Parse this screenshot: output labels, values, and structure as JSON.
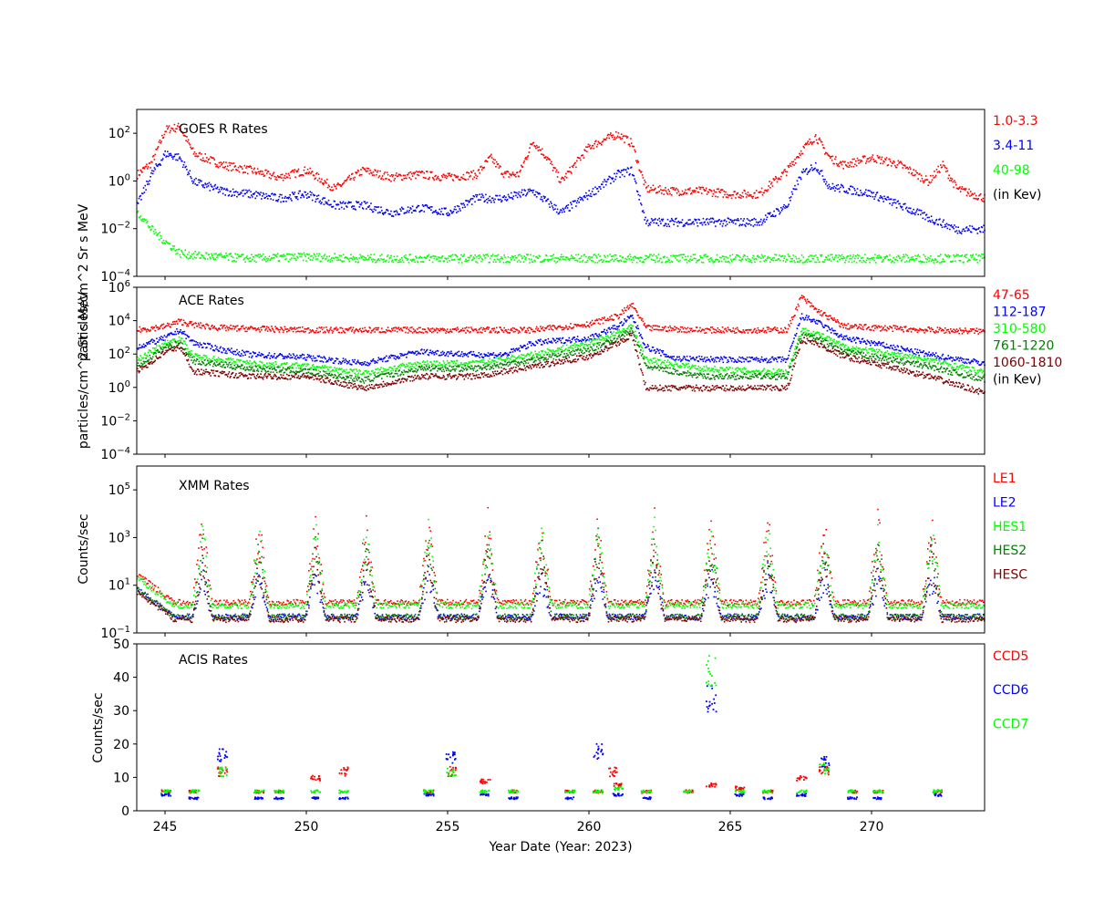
{
  "figure": {
    "xlabel": "Year Date (Year: 2023)",
    "xticks": [
      245,
      250,
      255,
      260,
      265,
      270
    ],
    "xlim": [
      244.0,
      274.0
    ]
  },
  "chart_data": [
    {
      "type": "scatter",
      "title": "GOES R Rates",
      "ylabel": "particles/cm^2 Sr s MeV",
      "yscale": "log",
      "ylim_exp": [
        -4,
        3
      ],
      "ytick_exps": [
        -4,
        -2,
        0,
        2
      ],
      "legend": [
        "1.0-3.3",
        "3.4-11",
        "40-98",
        "(in Kev)"
      ],
      "legend_colors": [
        "#ff0000",
        "#0000ff",
        "#00ff00",
        "#000000"
      ],
      "series": [
        {
          "name": "1.0-3.3",
          "color": "#ff0000",
          "x": [
            244.0,
            244.5,
            245.0,
            245.5,
            246.0,
            247.0,
            248.0,
            249.0,
            250.0,
            251.0,
            252.0,
            253.0,
            254.0,
            255.0,
            256.0,
            256.5,
            257.0,
            257.5,
            258.0,
            258.5,
            259.0,
            260.0,
            261.0,
            261.5,
            262.0,
            263.0,
            264.0,
            265.0,
            266.0,
            267.0,
            267.5,
            268.0,
            268.5,
            269.0,
            270.0,
            271.0,
            272.0,
            272.5,
            273.0,
            274.0
          ],
          "y": [
            2,
            6,
            150,
            200,
            15,
            5,
            3,
            1.5,
            3,
            0.5,
            3,
            1.5,
            2,
            1.5,
            2,
            10,
            2,
            2,
            50,
            10,
            1,
            30,
            100,
            40,
            0.5,
            0.4,
            0.4,
            0.3,
            0.3,
            3,
            20,
            80,
            10,
            5,
            10,
            5,
            1,
            5,
            0.5,
            0.2
          ]
        },
        {
          "name": "3.4-11",
          "color": "#0000ff",
          "x": [
            244.0,
            244.5,
            245.0,
            245.5,
            246.0,
            247.0,
            248.0,
            249.0,
            250.0,
            251.0,
            252.0,
            253.0,
            254.0,
            255.0,
            256.0,
            257.0,
            258.0,
            259.0,
            260.0,
            261.0,
            261.5,
            262.0,
            263.0,
            264.0,
            265.0,
            266.0,
            267.0,
            267.5,
            268.0,
            268.5,
            269.0,
            270.0,
            271.0,
            272.0,
            273.0,
            274.0
          ],
          "y": [
            0.1,
            2,
            15,
            10,
            1,
            0.4,
            0.3,
            0.2,
            0.3,
            0.1,
            0.1,
            0.05,
            0.08,
            0.05,
            0.2,
            0.2,
            0.4,
            0.05,
            0.3,
            2,
            3,
            0.02,
            0.02,
            0.02,
            0.02,
            0.02,
            0.1,
            2,
            5,
            0.6,
            0.5,
            0.3,
            0.1,
            0.03,
            0.01,
            0.01
          ]
        },
        {
          "name": "40-98",
          "color": "#00ff00",
          "x": [
            244.0,
            244.2,
            244.5,
            245.0,
            245.5,
            246.0,
            248.0,
            250.0,
            252.0,
            255.0,
            258.0,
            261.0,
            264.0,
            267.0,
            270.0,
            274.0
          ],
          "y": [
            0.05,
            0.03,
            0.01,
            0.003,
            0.001,
            0.0008,
            0.0006,
            0.0007,
            0.0006,
            0.0006,
            0.0006,
            0.0006,
            0.0006,
            0.0006,
            0.0006,
            0.0006
          ]
        }
      ]
    },
    {
      "type": "scatter",
      "title": "ACE Rates",
      "ylabel": "particles/cm^2 Sr s MeV",
      "yscale": "log",
      "ylim_exp": [
        -4,
        6
      ],
      "ytick_exps": [
        -4,
        -2,
        0,
        2,
        4,
        6
      ],
      "legend": [
        "47-65",
        "112-187",
        "310-580",
        "761-1220",
        "1060-1810",
        "(in Kev)"
      ],
      "legend_colors": [
        "#ff0000",
        "#0000ff",
        "#00ff00",
        "#008000",
        "#800000",
        "#000000"
      ],
      "series": [
        {
          "name": "47-65",
          "color": "#ff0000",
          "x": [
            244.0,
            245.0,
            245.5,
            246.0,
            247.0,
            250.0,
            255.0,
            258.0,
            260.0,
            261.0,
            261.5,
            262.0,
            264.0,
            266.0,
            267.0,
            267.5,
            268.0,
            269.0,
            272.0,
            274.0
          ],
          "y": [
            3000,
            5000,
            10000,
            6000,
            4000,
            3000,
            3000,
            3000,
            7000,
            20000,
            100000,
            4000,
            3000,
            3000,
            3000,
            300000,
            50000,
            5000,
            3000,
            2500
          ]
        },
        {
          "name": "112-187",
          "color": "#0000ff",
          "x": [
            244.0,
            245.0,
            245.5,
            246.0,
            247.0,
            248.0,
            250.0,
            252.0,
            254.0,
            256.0,
            257.0,
            258.0,
            260.0,
            261.0,
            261.5,
            262.0,
            263.0,
            265.0,
            266.0,
            267.0,
            267.5,
            268.0,
            269.0,
            270.0,
            272.0,
            274.0
          ],
          "y": [
            300,
            1000,
            3000,
            500,
            200,
            100,
            70,
            30,
            150,
            100,
            100,
            500,
            1000,
            5000,
            20000,
            300,
            60,
            50,
            50,
            50,
            20000,
            10000,
            1000,
            500,
            100,
            30
          ]
        },
        {
          "name": "310-580",
          "color": "#00ff00",
          "x": [
            244.0,
            245.0,
            245.5,
            246.0,
            248.0,
            250.0,
            252.0,
            254.0,
            256.0,
            258.0,
            260.0,
            261.0,
            261.5,
            262.0,
            264.0,
            266.0,
            267.0,
            267.5,
            268.0,
            269.0,
            272.0,
            274.0
          ],
          "y": [
            50,
            500,
            1000,
            80,
            30,
            20,
            8,
            30,
            30,
            100,
            500,
            2000,
            5000,
            50,
            15,
            10,
            10,
            3000,
            2000,
            300,
            50,
            8
          ]
        },
        {
          "name": "761-1220",
          "color": "#008000",
          "x": [
            244.0,
            245.0,
            245.5,
            246.0,
            248.0,
            250.0,
            252.0,
            254.0,
            256.0,
            258.0,
            260.0,
            261.0,
            261.5,
            262.0,
            264.0,
            266.0,
            267.0,
            267.5,
            268.0,
            269.0,
            272.0,
            274.0
          ],
          "y": [
            20,
            300,
            500,
            40,
            15,
            10,
            3,
            15,
            15,
            50,
            200,
            1000,
            3000,
            20,
            5,
            5,
            5,
            1500,
            1000,
            150,
            20,
            3
          ]
        },
        {
          "name": "1060-1810",
          "color": "#800000",
          "x": [
            244.0,
            245.0,
            245.5,
            246.0,
            248.0,
            250.0,
            252.0,
            254.0,
            256.0,
            258.0,
            260.0,
            261.0,
            261.5,
            262.0,
            264.0,
            266.0,
            267.0,
            267.5,
            268.0,
            269.0,
            272.0,
            274.0
          ],
          "y": [
            10,
            150,
            300,
            10,
            5,
            5,
            1,
            5,
            5,
            20,
            80,
            500,
            1500,
            1,
            1,
            1,
            1,
            800,
            500,
            80,
            5,
            0.5
          ]
        }
      ]
    },
    {
      "type": "scatter",
      "title": "XMM Rates",
      "ylabel": "Counts/sec",
      "yscale": "log",
      "ylim_exp": [
        -1,
        6
      ],
      "ytick_exps": [
        -1,
        1,
        3,
        5
      ],
      "legend": [
        "LE1",
        "LE2",
        "HES1",
        "HES2",
        "HESC"
      ],
      "legend_colors": [
        "#ff0000",
        "#0000ff",
        "#00ff00",
        "#008000",
        "#800000"
      ],
      "spikes": [
        246.3,
        248.3,
        250.3,
        252.1,
        254.3,
        256.4,
        258.3,
        260.3,
        262.3,
        264.3,
        266.3,
        268.3,
        270.2,
        272.1
      ],
      "baselines": {
        "LE1": 2,
        "LE2": 0.5,
        "HES1": 1.5,
        "HES2": 0.5,
        "HESC": 0.4
      },
      "series": [
        {
          "name": "LE1",
          "color": "#ff0000",
          "peak": 20000
        },
        {
          "name": "LE2",
          "color": "#0000ff",
          "peak": 100
        },
        {
          "name": "HES1",
          "color": "#00ff00",
          "peak": 10000
        },
        {
          "name": "HES2",
          "color": "#008000",
          "peak": 3000
        },
        {
          "name": "HESC",
          "color": "#800000",
          "peak": 1000
        }
      ]
    },
    {
      "type": "scatter",
      "title": "ACIS Rates",
      "ylabel": "Counts/sec",
      "yscale": "linear",
      "ylim": [
        0,
        50
      ],
      "yticks": [
        0,
        10,
        20,
        30,
        40,
        50
      ],
      "legend": [
        "CCD5",
        "CCD6",
        "CCD7"
      ],
      "legend_colors": [
        "#ff0000",
        "#0000ff",
        "#00ff00"
      ],
      "series": [
        {
          "name": "CCD5",
          "color": "#ff0000",
          "x": [
            245.0,
            246.0,
            247.0,
            248.3,
            249.0,
            250.3,
            251.3,
            254.3,
            255.1,
            256.3,
            257.3,
            259.3,
            260.3,
            260.8,
            261.0,
            262.0,
            263.5,
            264.3,
            265.3,
            266.3,
            267.5,
            268.3,
            269.3,
            270.2,
            272.3
          ],
          "y": [
            6,
            6,
            12,
            6,
            6,
            10,
            12,
            6,
            12,
            9,
            6,
            6,
            6,
            12,
            8,
            6,
            6,
            8,
            7,
            6,
            10,
            12,
            6,
            6,
            6
          ]
        },
        {
          "name": "CCD6",
          "color": "#0000ff",
          "x": [
            245.0,
            246.0,
            247.0,
            248.3,
            249.0,
            250.3,
            251.3,
            254.3,
            255.1,
            256.3,
            257.3,
            259.3,
            260.3,
            261.0,
            262.0,
            264.3,
            265.3,
            266.3,
            267.5,
            268.3,
            269.3,
            270.2,
            272.3
          ],
          "y": [
            5,
            4,
            17,
            4,
            4,
            4,
            4,
            5,
            16,
            5,
            4,
            4,
            18,
            5,
            4,
            34,
            5,
            4,
            5,
            15,
            4,
            4,
            5
          ]
        },
        {
          "name": "CCD7",
          "color": "#00ff00",
          "x": [
            245.0,
            246.0,
            247.0,
            248.3,
            249.0,
            250.3,
            251.3,
            254.3,
            255.1,
            256.3,
            257.3,
            259.3,
            260.3,
            261.0,
            262.0,
            263.5,
            264.3,
            265.3,
            266.3,
            267.5,
            268.3,
            269.3,
            270.2,
            272.3
          ],
          "y": [
            6,
            6,
            12,
            6,
            6,
            6,
            6,
            6,
            12,
            6,
            6,
            6,
            6,
            7,
            6,
            6,
            42,
            6,
            6,
            6,
            13,
            6,
            6,
            6
          ]
        }
      ]
    }
  ]
}
